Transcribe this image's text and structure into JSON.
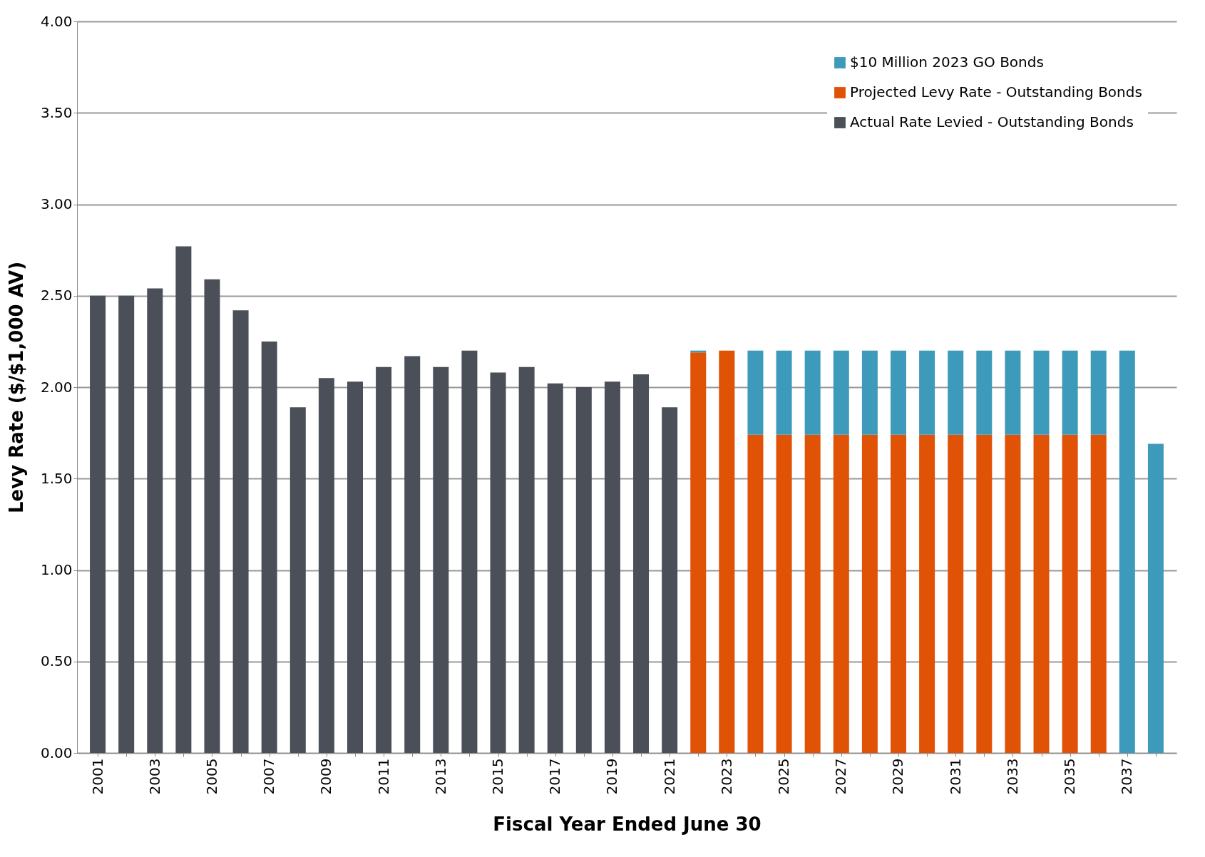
{
  "chart_data": {
    "type": "bar",
    "stacked": true,
    "xlabel": "Fiscal Year Ended June 30",
    "ylabel": "Levy Rate ($/$1,000 AV)",
    "categories": [
      "2001",
      null,
      "2003",
      null,
      "2005",
      null,
      "2007",
      null,
      "2009",
      null,
      "2011",
      null,
      "2013",
      null,
      "2015",
      null,
      "2017",
      null,
      "2019",
      null,
      "2021",
      null,
      "2023",
      null,
      "2025",
      null,
      "2027",
      null,
      "2029",
      null,
      "2031",
      null,
      "2033",
      null,
      "2035",
      null,
      "2037",
      null
    ],
    "series": [
      {
        "name": "Actual Rate Levied - Outstanding Bonds",
        "color": "#4a4f58",
        "values": [
          2.5,
          2.5,
          2.54,
          2.77,
          2.59,
          2.42,
          2.25,
          1.89,
          2.05,
          2.03,
          2.11,
          2.17,
          2.11,
          2.2,
          2.08,
          2.11,
          2.02,
          2.0,
          2.03,
          2.07,
          1.89,
          null,
          null,
          null,
          null,
          null,
          null,
          null,
          null,
          null,
          null,
          null,
          null,
          null,
          null,
          null,
          null,
          null
        ]
      },
      {
        "name": "Projected Levy Rate - Outstanding Bonds",
        "color": "#e05206",
        "values": [
          null,
          null,
          null,
          null,
          null,
          null,
          null,
          null,
          null,
          null,
          null,
          null,
          null,
          null,
          null,
          null,
          null,
          null,
          null,
          null,
          null,
          2.19,
          2.2,
          1.74,
          1.74,
          1.74,
          1.74,
          1.74,
          1.74,
          1.74,
          1.74,
          1.74,
          1.74,
          1.74,
          1.74,
          1.74,
          null,
          null
        ]
      },
      {
        "name": "$10 Million 2023 GO Bonds",
        "color": "#3e9aba",
        "values": [
          null,
          null,
          null,
          null,
          null,
          null,
          null,
          null,
          null,
          null,
          null,
          null,
          null,
          null,
          null,
          null,
          null,
          null,
          null,
          null,
          null,
          0.01,
          null,
          0.46,
          0.46,
          0.46,
          0.46,
          0.46,
          0.46,
          0.46,
          0.46,
          0.46,
          0.46,
          0.46,
          0.46,
          0.46,
          2.2,
          1.69
        ]
      }
    ],
    "ylim": [
      0,
      4
    ],
    "yticks": [
      {
        "value": 0,
        "label": "0.00"
      },
      {
        "value": 0.5,
        "label": "0.50"
      },
      {
        "value": 1,
        "label": "1.00"
      },
      {
        "value": 1.5,
        "label": "1.50"
      },
      {
        "value": 2,
        "label": "2.00"
      },
      {
        "value": 2.5,
        "label": "2.50"
      },
      {
        "value": 3,
        "label": "3.00"
      },
      {
        "value": 3.5,
        "label": "3.50"
      },
      {
        "value": 4,
        "label": "4.00"
      }
    ],
    "grid": "y",
    "legend": "top right"
  }
}
